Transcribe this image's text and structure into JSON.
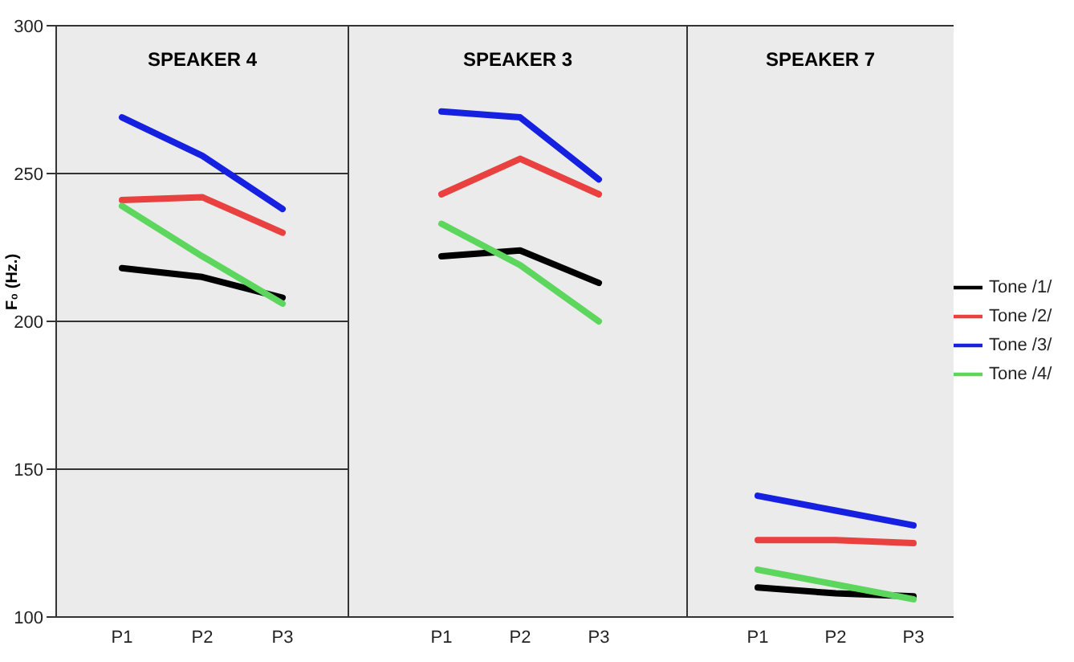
{
  "chart_data": [
    {
      "type": "line",
      "title": "SPEAKER 4",
      "ylabel": "F₀ (Hz.)",
      "categories": [
        "P1",
        "P2",
        "P3"
      ],
      "ylim": [
        100,
        300
      ],
      "yticks": [
        100,
        150,
        200,
        250,
        300
      ],
      "grid": "y",
      "marker": "none",
      "series": [
        {
          "color": "#000000",
          "values": [
            218,
            215,
            208
          ]
        },
        {
          "color": "#e8413f",
          "values": [
            241,
            242,
            230
          ]
        },
        {
          "color": "#1520e0",
          "values": [
            269,
            256,
            238
          ]
        },
        {
          "color": "#5cd65c",
          "values": [
            239,
            222,
            206
          ]
        }
      ]
    },
    {
      "type": "line",
      "title": "SPEAKER 3",
      "categories": [
        "P1",
        "P2",
        "P3"
      ],
      "ylim": [
        100,
        300
      ],
      "yticks": [
        100,
        150,
        200,
        250,
        300
      ],
      "grid": "y",
      "marker": "none",
      "tick_labels": "x",
      "series": [
        {
          "color": "#000000",
          "values": [
            222,
            224,
            213
          ]
        },
        {
          "color": "#e8413f",
          "values": [
            243,
            255,
            243
          ]
        },
        {
          "color": "#1520e0",
          "values": [
            271,
            269,
            248
          ]
        },
        {
          "color": "#5cd65c",
          "values": [
            233,
            219,
            200
          ]
        }
      ]
    },
    {
      "type": "line",
      "title": "SPEAKER 7",
      "categories": [
        "P1",
        "P2",
        "P3"
      ],
      "ylim": [
        100,
        300
      ],
      "yticks": [
        100,
        150,
        200,
        250,
        300
      ],
      "grid": "y",
      "marker": "none",
      "tick_labels": "x",
      "legend": "right",
      "series": [
        {
          "name": "Tone /1/",
          "color": "#000000",
          "values": [
            110,
            108,
            107
          ]
        },
        {
          "name": "Tone /2/",
          "color": "#e8413f",
          "values": [
            126,
            126,
            125
          ]
        },
        {
          "name": "Tone /3/",
          "color": "#1520e0",
          "values": [
            141,
            136,
            131
          ]
        },
        {
          "name": "Tone /4/",
          "color": "#5cd65c",
          "values": [
            116,
            111,
            106
          ]
        }
      ]
    }
  ]
}
